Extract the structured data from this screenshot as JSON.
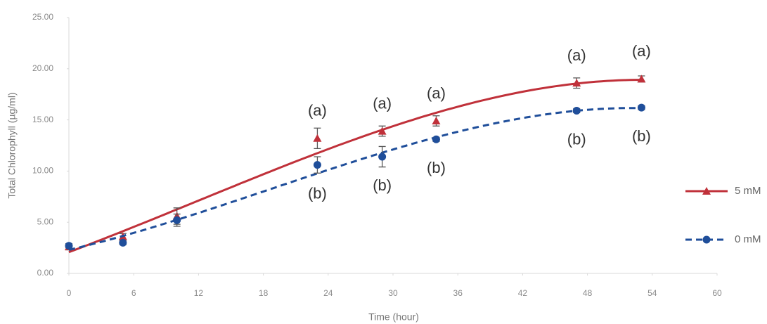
{
  "chart_data": {
    "type": "scatter",
    "x_label": "Time (hour)",
    "y_label": "Total Chlorophyll (µg/ml)",
    "xlim": [
      0,
      60
    ],
    "xticks": [
      0,
      6,
      12,
      18,
      24,
      30,
      36,
      42,
      48,
      54,
      60
    ],
    "ylim": [
      0,
      25
    ],
    "yticks": [
      {
        "value": 0,
        "label": "0.00"
      },
      {
        "value": 5,
        "label": "5.00"
      },
      {
        "value": 10,
        "label": "10.00"
      },
      {
        "value": 15,
        "label": "15.00"
      },
      {
        "value": 20,
        "label": "20.00"
      },
      {
        "value": 25,
        "label": "25.00"
      }
    ],
    "grid": false,
    "trendline_order": 3,
    "legend": "right",
    "series": [
      {
        "name": "5 mM",
        "color": "#c0313a",
        "marker": "triangle",
        "dash": false,
        "x": [
          0,
          5,
          10,
          23,
          29,
          34,
          47,
          53
        ],
        "values": [
          2.6,
          3.6,
          5.6,
          13.2,
          13.9,
          14.9,
          18.6,
          19.0
        ],
        "errors": [
          0.3,
          0.3,
          0.8,
          1.0,
          0.5,
          0.5,
          0.5,
          0.3
        ],
        "letters": [
          null,
          null,
          null,
          "(a)",
          "(a)",
          "(a)",
          "(a)",
          "(a)"
        ]
      },
      {
        "name": "0 mM",
        "color": "#1f4e9a",
        "marker": "circle",
        "dash": true,
        "x": [
          0,
          5,
          10,
          23,
          29,
          34,
          47,
          53
        ],
        "values": [
          2.7,
          3.0,
          5.2,
          10.6,
          11.4,
          13.1,
          15.9,
          16.2
        ],
        "errors": [
          0.2,
          0.2,
          0.6,
          0.8,
          1.0,
          0.2,
          0.2,
          0.2
        ],
        "letters": [
          null,
          null,
          null,
          "(b)",
          "(b)",
          "(b)",
          "(b)",
          "(b)"
        ]
      }
    ]
  }
}
